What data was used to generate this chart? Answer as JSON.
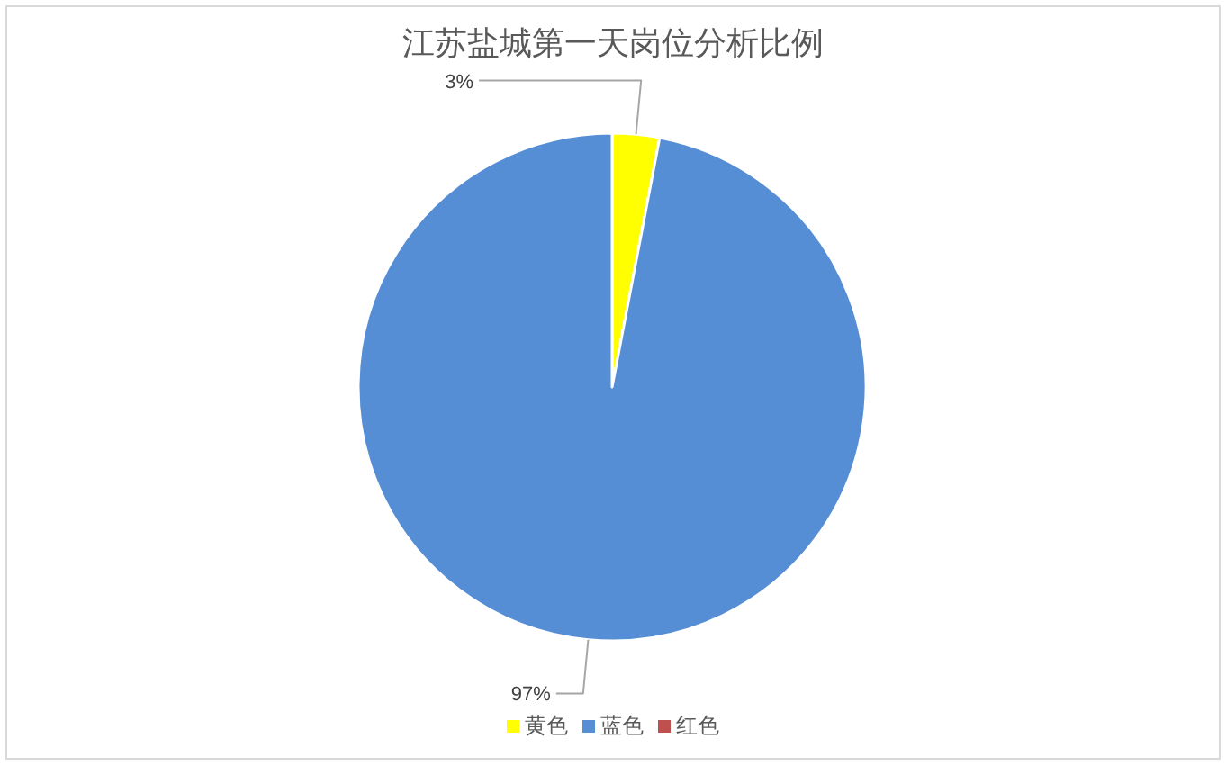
{
  "chart_data": {
    "type": "pie",
    "title": "江苏盐城第一天岗位分析比例",
    "categories": [
      "黄色",
      "蓝色",
      "红色"
    ],
    "values": [
      3,
      97,
      0
    ],
    "colors": [
      "#ffff00",
      "#558ed5",
      "#c0504d"
    ],
    "value_labels": [
      "3%",
      "97%",
      null
    ],
    "legend": "bottom"
  }
}
